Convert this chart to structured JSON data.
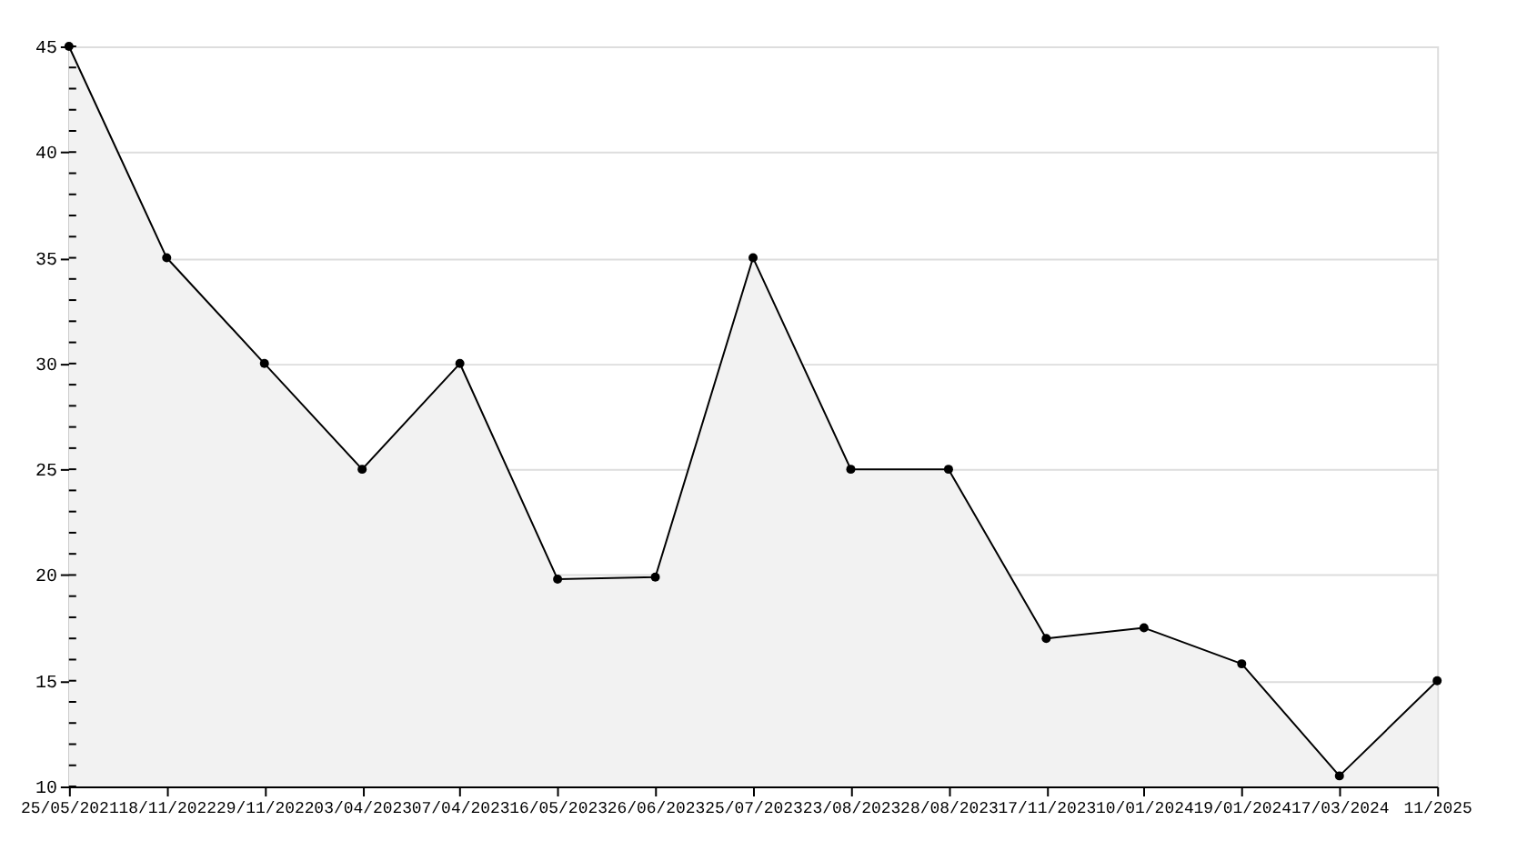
{
  "chart_data": {
    "type": "area",
    "categories": [
      "25/05/2021",
      "18/11/2022",
      "29/11/2022",
      "03/04/2023",
      "07/04/2023",
      "16/05/2023",
      "26/06/2023",
      "25/07/2023",
      "23/08/2023",
      "28/08/2023",
      "17/11/2023",
      "10/01/2024",
      "19/01/2024",
      "17/03/2024",
      "11/2025"
    ],
    "series": [
      {
        "color": "#000000",
        "values": [
          45,
          35,
          30,
          25,
          30,
          19.8,
          19.9,
          35,
          25,
          25,
          17,
          17.5,
          15.8,
          10.5,
          15
        ]
      }
    ],
    "ylim": [
      10,
      45
    ],
    "yticks": [
      10,
      15,
      20,
      25,
      30,
      35,
      40,
      45
    ],
    "grid": "y",
    "marker": "circle",
    "line_style": "solid"
  }
}
